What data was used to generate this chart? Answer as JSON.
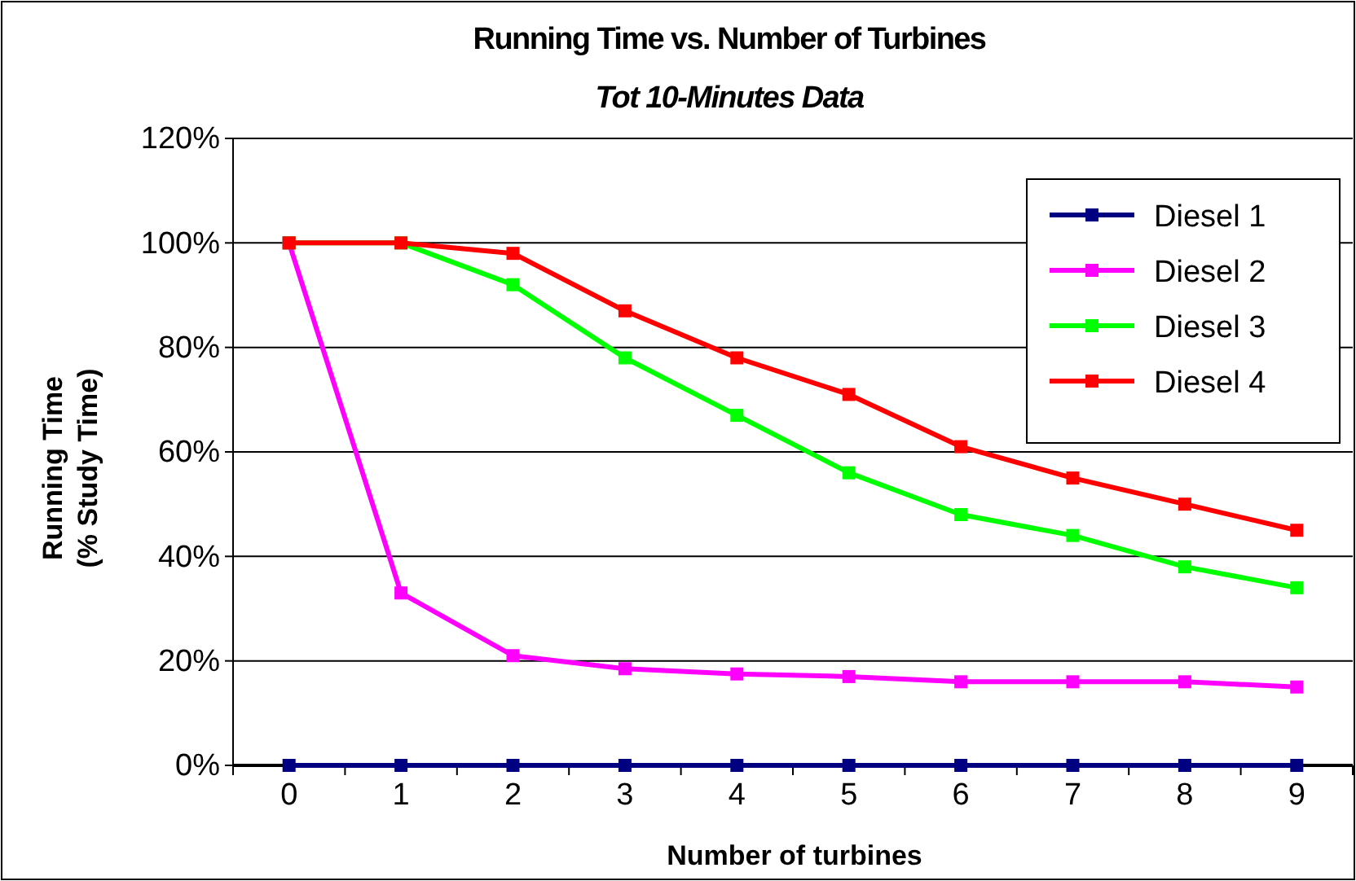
{
  "chart_data": {
    "type": "line",
    "title": "Running Time vs. Number of Turbines",
    "subtitle": "Tot 10-Minutes Data",
    "xlabel": "Number of turbines",
    "ylabel": "Running Time\n(% Study Time)",
    "categories": [
      "0",
      "1",
      "2",
      "3",
      "4",
      "5",
      "6",
      "7",
      "8",
      "9"
    ],
    "series": [
      {
        "name": "Diesel 1",
        "color": "#000080",
        "values": [
          0,
          0,
          0,
          0,
          0,
          0,
          0,
          0,
          0,
          0
        ]
      },
      {
        "name": "Diesel 2",
        "color": "#ff00ff",
        "values": [
          100,
          33,
          21,
          18.5,
          17.5,
          17,
          16,
          16,
          16,
          15
        ]
      },
      {
        "name": "Diesel 3",
        "color": "#00ff00",
        "values": [
          100,
          100,
          92,
          78,
          67,
          56,
          48,
          44,
          38,
          34
        ]
      },
      {
        "name": "Diesel 4",
        "color": "#ff0000",
        "values": [
          100,
          100,
          98,
          87,
          78,
          71,
          61,
          55,
          50,
          45
        ]
      }
    ],
    "ylim": [
      0,
      120
    ],
    "yticks": [
      {
        "value": 0,
        "label": "0%"
      },
      {
        "value": 20,
        "label": "20%"
      },
      {
        "value": 40,
        "label": "40%"
      },
      {
        "value": 60,
        "label": "60%"
      },
      {
        "value": 80,
        "label": "80%"
      },
      {
        "value": 100,
        "label": "100%"
      },
      {
        "value": 120,
        "label": "120%"
      }
    ],
    "grid": "y",
    "legend": "top right",
    "marker": "square",
    "line_style": "solid"
  }
}
